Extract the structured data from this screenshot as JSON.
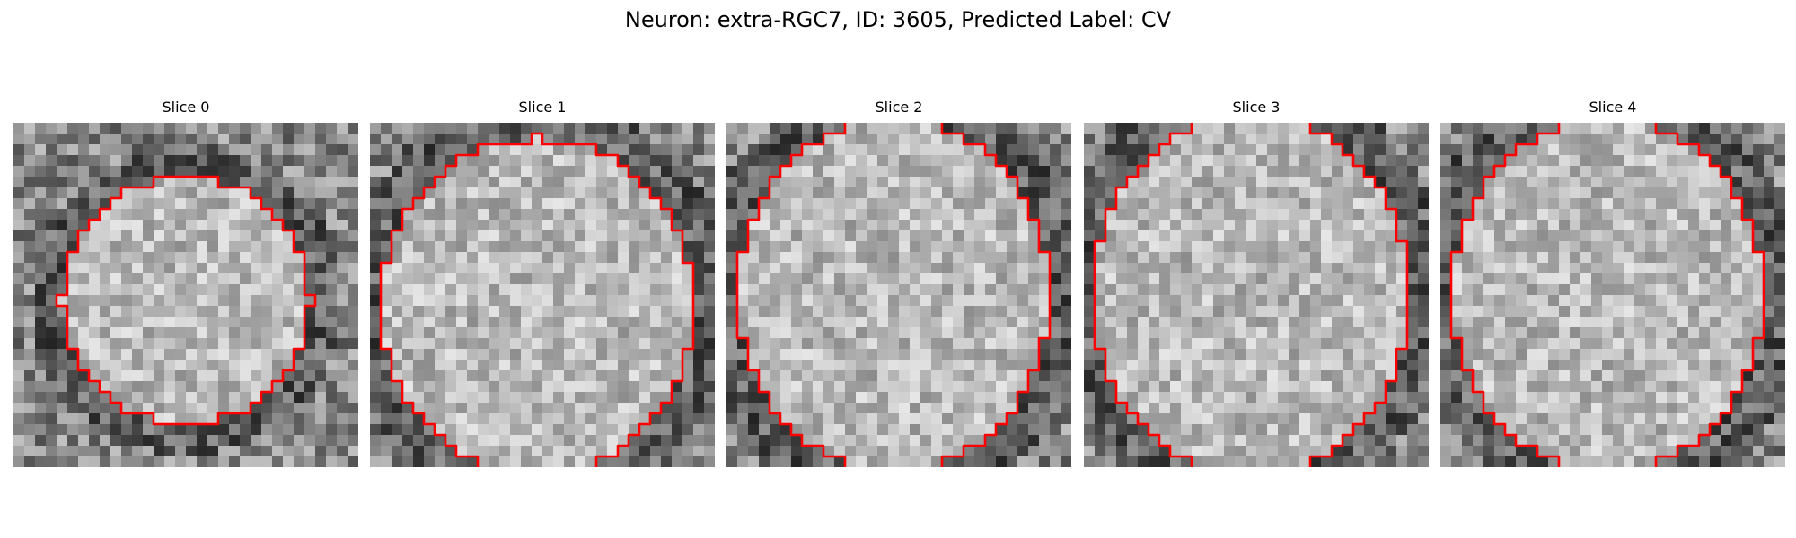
{
  "figure": {
    "title": "Neuron: extra-RGC7, ID: 3605, Predicted Label: CV"
  },
  "panels": [
    {
      "title": "Slice 0"
    },
    {
      "title": "Slice 1"
    },
    {
      "title": "Slice 2"
    },
    {
      "title": "Slice 3"
    },
    {
      "title": "Slice 4"
    }
  ],
  "colors": {
    "contour": "#ff0000",
    "background": "#ffffff"
  }
}
